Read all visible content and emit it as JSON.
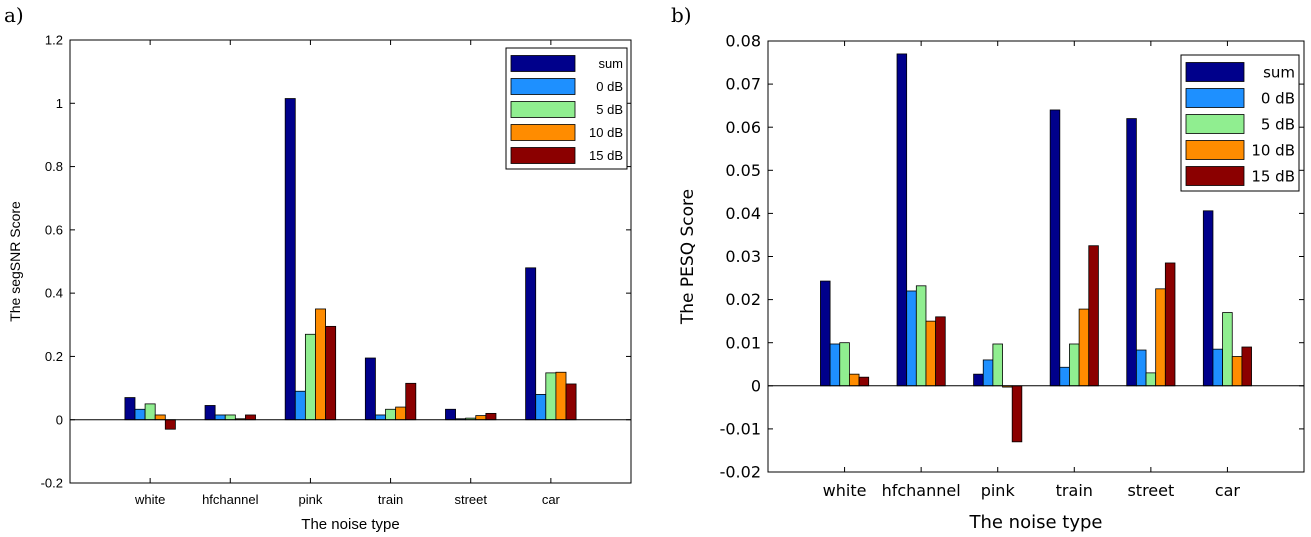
{
  "panels": [
    {
      "letter": "a)"
    },
    {
      "letter": "b)"
    }
  ],
  "chart_data": [
    {
      "type": "bar",
      "panel": "a)",
      "xlabel": "The noise type",
      "ylabel": "The segSNR Score",
      "categories": [
        "white",
        "hfchannel",
        "pink",
        "train",
        "street",
        "car"
      ],
      "ylim": [
        -0.2,
        1.2
      ],
      "yticks": [
        -0.2,
        0,
        0.2,
        0.4,
        0.6,
        0.8,
        1,
        1.2
      ],
      "ytick_labels": [
        "-0.2",
        "0",
        "0.2",
        "0.4",
        "0.6",
        "0.8",
        "1",
        "1.2"
      ],
      "legend_position": "top-right",
      "grid": false,
      "series": [
        {
          "name": "sum",
          "color": "#00008b",
          "values": [
            0.07,
            0.045,
            1.015,
            0.195,
            0.033,
            0.48
          ]
        },
        {
          "name": "0 dB",
          "color": "#1e90ff",
          "values": [
            0.033,
            0.015,
            0.09,
            0.015,
            0.003,
            0.08
          ]
        },
        {
          "name": "5 dB",
          "color": "#90ee90",
          "values": [
            0.05,
            0.015,
            0.27,
            0.033,
            0.005,
            0.148
          ]
        },
        {
          "name": "10 dB",
          "color": "#ff8c00",
          "values": [
            0.015,
            0.003,
            0.35,
            0.04,
            0.013,
            0.15
          ]
        },
        {
          "name": "15 dB",
          "color": "#8b0000",
          "values": [
            -0.03,
            0.015,
            0.295,
            0.115,
            0.02,
            0.113
          ]
        }
      ]
    },
    {
      "type": "bar",
      "panel": "b)",
      "xlabel": "The noise type",
      "ylabel": "The PESQ Score",
      "categories": [
        "white",
        "hfchannel",
        "pink",
        "train",
        "street",
        "car"
      ],
      "ylim": [
        -0.02,
        0.08
      ],
      "yticks": [
        -0.02,
        -0.01,
        0,
        0.01,
        0.02,
        0.03,
        0.04,
        0.05,
        0.06,
        0.07,
        0.08
      ],
      "ytick_labels": [
        "-0.02",
        "-0.01",
        "0",
        "0.01",
        "0.02",
        "0.03",
        "0.04",
        "0.05",
        "0.06",
        "0.07",
        "0.08"
      ],
      "legend_position": "top-right",
      "grid": false,
      "series": [
        {
          "name": "sum",
          "color": "#00008b",
          "values": [
            0.0243,
            0.077,
            0.0027,
            0.064,
            0.062,
            0.0406
          ]
        },
        {
          "name": "0 dB",
          "color": "#1e90ff",
          "values": [
            0.0097,
            0.022,
            0.006,
            0.0043,
            0.0083,
            0.0085
          ]
        },
        {
          "name": "5 dB",
          "color": "#90ee90",
          "values": [
            0.01,
            0.0232,
            0.0097,
            0.0097,
            0.003,
            0.017
          ]
        },
        {
          "name": "10 dB",
          "color": "#ff8c00",
          "values": [
            0.0027,
            0.015,
            -0.0003,
            0.0178,
            0.0225,
            0.0068
          ]
        },
        {
          "name": "15 dB",
          "color": "#8b0000",
          "values": [
            0.002,
            0.016,
            -0.013,
            0.0325,
            0.0285,
            0.009
          ]
        }
      ]
    }
  ]
}
